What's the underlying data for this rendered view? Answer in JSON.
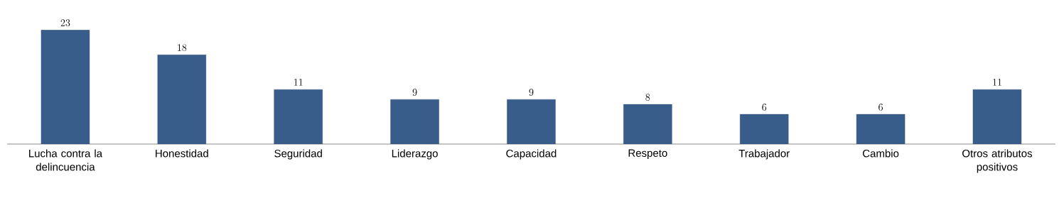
{
  "chart_data": {
    "type": "bar",
    "categories": [
      "Lucha contra la delincuencia",
      "Honestidad",
      "Seguridad",
      "Liderazgo",
      "Capacidad",
      "Respeto",
      "Trabajador",
      "Cambio",
      "Otros atributos positivos"
    ],
    "values": [
      23,
      18,
      11,
      9,
      9,
      8,
      6,
      6,
      11
    ],
    "color": "#385d8a",
    "data_labels": true
  }
}
